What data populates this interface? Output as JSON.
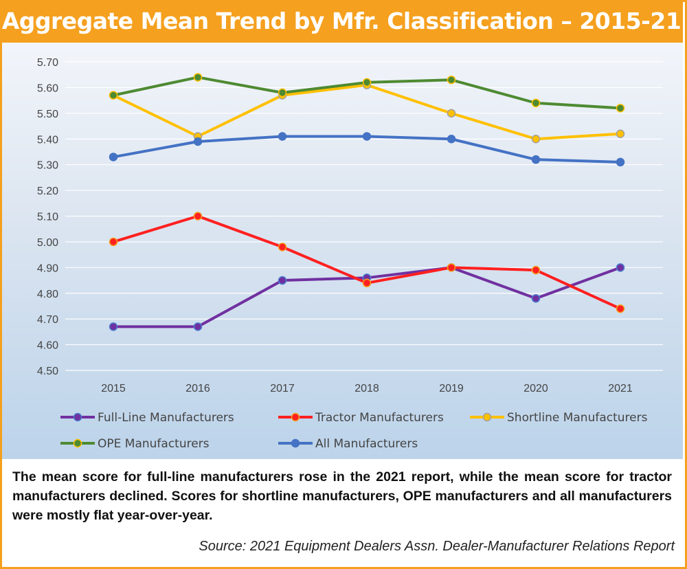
{
  "chart_data": {
    "type": "line",
    "title": "Aggregate Mean Trend by Mfr. Classification – 2015-21",
    "categories": [
      "2015",
      "2016",
      "2017",
      "2018",
      "2019",
      "2020",
      "2021"
    ],
    "ylim": [
      4.5,
      5.7
    ],
    "yticks": [
      "4.50",
      "4.60",
      "4.70",
      "4.80",
      "4.90",
      "5.00",
      "5.10",
      "5.20",
      "5.30",
      "5.40",
      "5.50",
      "5.60",
      "5.70"
    ],
    "grid": true,
    "legend_position": "bottom",
    "series": [
      {
        "name": "Full-Line Manufacturers",
        "values": [
          4.67,
          4.67,
          4.85,
          4.86,
          4.9,
          4.78,
          4.9
        ],
        "color": "#7030a0",
        "marker_edge": "#4a7fd0"
      },
      {
        "name": "Tractor Manufacturers",
        "values": [
          5.0,
          5.1,
          4.98,
          4.84,
          4.9,
          4.89,
          4.74
        ],
        "color": "#ff2020",
        "marker_edge": "#f5a01e"
      },
      {
        "name": "Shortline Manufacturers",
        "values": [
          5.57,
          5.41,
          5.57,
          5.61,
          5.5,
          5.4,
          5.42
        ],
        "color": "#ffc000",
        "marker_edge": "#a0a0a0"
      },
      {
        "name": "OPE Manufacturers",
        "values": [
          5.57,
          5.64,
          5.58,
          5.62,
          5.63,
          5.54,
          5.52
        ],
        "color": "#4e8a32",
        "marker_edge": "#ffc000"
      },
      {
        "name": "All Manufacturers",
        "values": [
          5.33,
          5.39,
          5.41,
          5.41,
          5.4,
          5.32,
          5.31
        ],
        "color": "#4472c4",
        "marker_edge": "#4472c4"
      }
    ]
  },
  "caption": "The mean score for full-line manufacturers rose in the 2021 report, while the mean score for tractor manufacturers declined. Scores for shortline manufacturers, OPE manufacturers and all manufacturers were mostly flat year-over-year.",
  "source": "Source: 2021 Equipment Dealers Assn. Dealer-Manufacturer Relations Report"
}
